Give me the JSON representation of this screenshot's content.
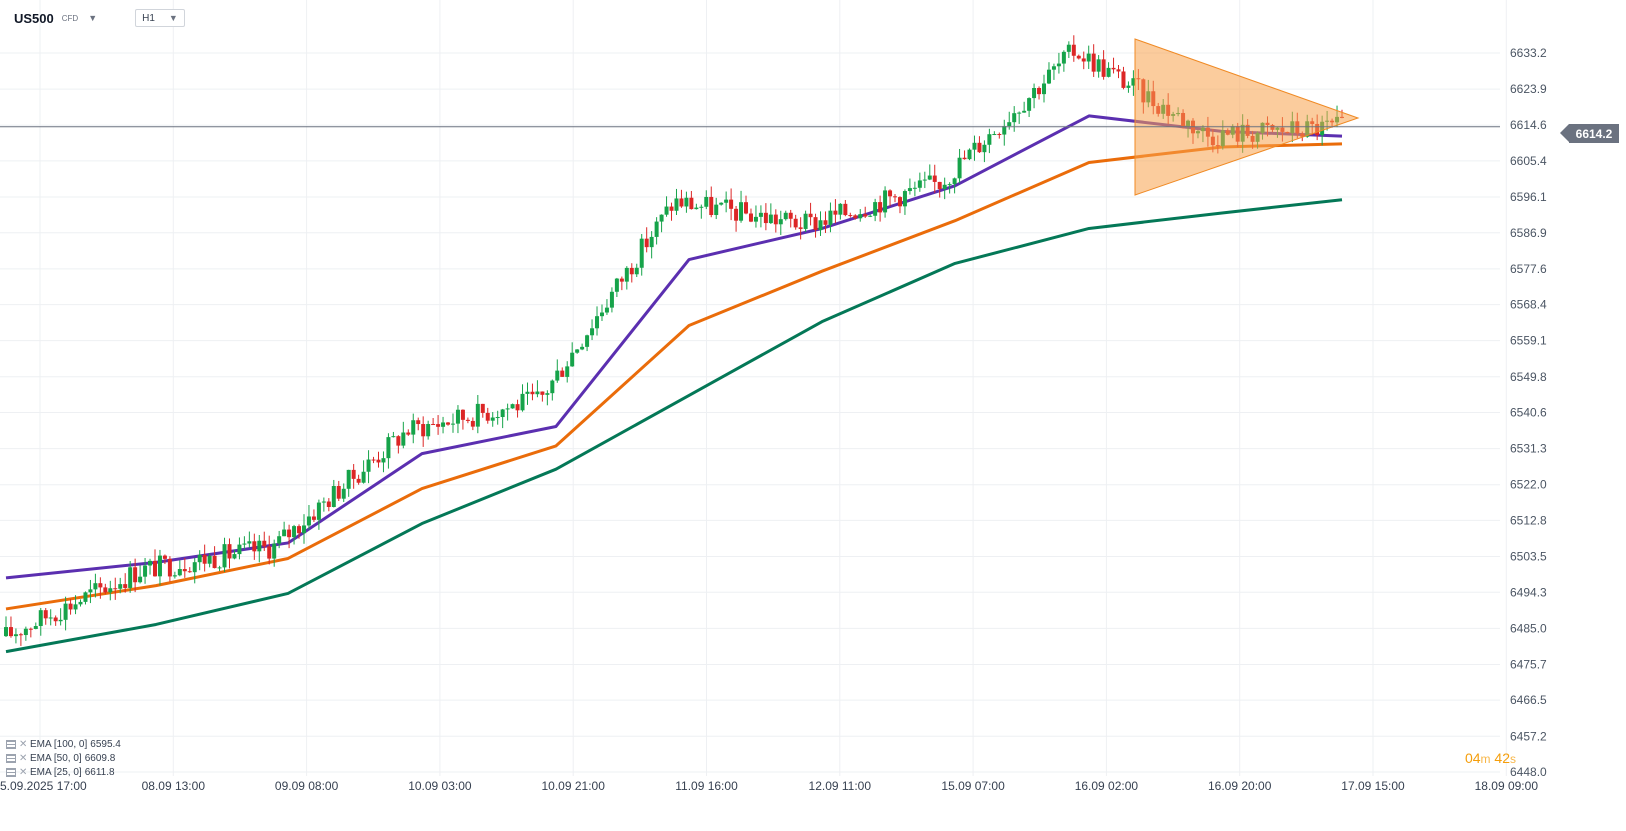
{
  "header": {
    "symbol": "US500",
    "badge": "CFD",
    "timeframe": "H1"
  },
  "price_axis": {
    "ticks": [
      "6633.2",
      "6623.9",
      "6614.6",
      "6605.4",
      "6596.1",
      "6586.9",
      "6577.6",
      "6568.4",
      "6559.1",
      "6549.8",
      "6540.6",
      "6531.3",
      "6522.0",
      "6512.8",
      "6503.5",
      "6494.3",
      "6485.0",
      "6475.7",
      "6466.5",
      "6457.2",
      "6448.0"
    ],
    "current_price": "6614.2"
  },
  "time_axis": [
    "05.09.2025  17:00",
    "08.09  13:00",
    "09.09  08:00",
    "10.09  03:00",
    "10.09  21:00",
    "11.09  16:00",
    "12.09  11:00",
    "15.09  07:00",
    "16.09  02:00",
    "16.09  20:00",
    "17.09  15:00",
    "18.09  09:00"
  ],
  "indicators": [
    {
      "label": "EMA [100, 0]",
      "value": "6595.4",
      "color": "#047857"
    },
    {
      "label": "EMA [50, 0]",
      "value": "6609.8",
      "color": "#ea6c0a"
    },
    {
      "label": "EMA [25, 0]",
      "value": "6611.8",
      "color": "#5b2fb0"
    }
  ],
  "countdown": {
    "minutes": "04",
    "m": "m",
    "seconds": "42",
    "s": "s"
  },
  "colors": {
    "up": "#16a34a",
    "down": "#dc2626",
    "grid": "#eef0f3",
    "triangle": "#f7a24d",
    "price_line": "#6b7280"
  },
  "chart_data": {
    "type": "candlestick",
    "instrument": "US500",
    "timeframe": "H1",
    "ylim": [
      6448.0,
      6640.0
    ],
    "x": [
      "05.09.2025 17:00",
      "08.09 13:00",
      "09.09 08:00",
      "10.09 03:00",
      "10.09 21:00",
      "11.09 16:00",
      "12.09 11:00",
      "15.09 07:00",
      "16.09 02:00",
      "16.09 20:00",
      "17.09 15:00"
    ],
    "close_at_x": [
      6483.0,
      6500.0,
      6506.0,
      6536.0,
      6544.0,
      6595.0,
      6589.0,
      6600.0,
      6634.0,
      6612.0,
      6614.2
    ],
    "series": [
      {
        "name": "EMA [100, 0]",
        "values": [
          6479.0,
          6486.0,
          6494.0,
          6512.0,
          6526.0,
          6545.0,
          6564.0,
          6579.0,
          6588.0,
          6592.0,
          6595.4
        ]
      },
      {
        "name": "EMA [50, 0]",
        "values": [
          6490.0,
          6496.0,
          6503.0,
          6521.0,
          6532.0,
          6563.0,
          6577.0,
          6590.0,
          6605.0,
          6609.0,
          6609.8
        ]
      },
      {
        "name": "EMA [25, 0]",
        "values": [
          6498.0,
          6502.0,
          6507.0,
          6530.0,
          6537.0,
          6580.0,
          6588.0,
          6599.0,
          6617.0,
          6613.0,
          6611.8
        ]
      }
    ],
    "last_price": 6614.2,
    "grid": true
  }
}
